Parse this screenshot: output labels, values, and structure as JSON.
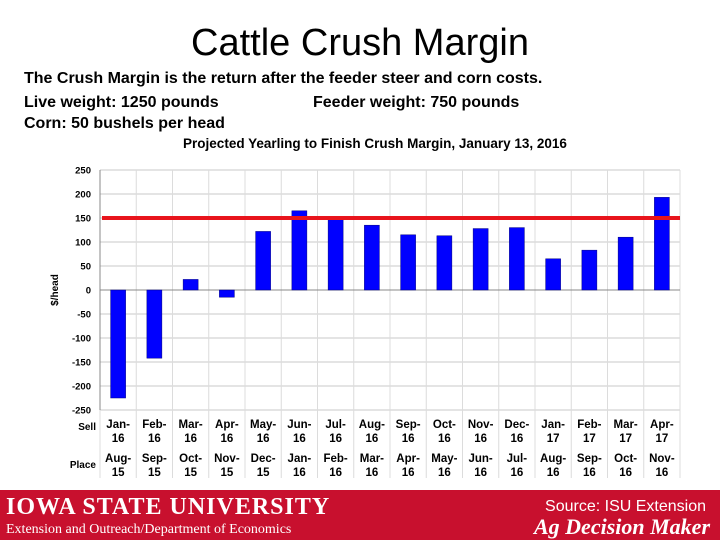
{
  "slide": {
    "title": "Cattle Crush Margin",
    "lines": [
      "The Crush Margin is the return after the feeder steer and corn costs.",
      "Live weight:  1250 pounds",
      "Feeder weight:  750 pounds",
      "Corn:  50 bushels per head"
    ]
  },
  "footer": {
    "university": "IOWA STATE UNIVERSITY",
    "department": "Extension and Outreach/Department of Economics",
    "source": "Source: ISU Extension",
    "brand": "Ag Decision Maker"
  },
  "colors": {
    "bar": "#0000ff",
    "reference_line": "#e8141c",
    "footer": "#c8102e"
  },
  "chart_data": {
    "type": "bar",
    "title": "Projected Yearling to Finish Crush Margin, January 13, 2016",
    "ylabel": "$/head",
    "ylim": [
      -250,
      250
    ],
    "yticks": [
      250,
      200,
      150,
      100,
      50,
      0,
      -50,
      -100,
      -150,
      -200,
      -250
    ],
    "grid": true,
    "row_labels": [
      "Sell",
      "Place"
    ],
    "categories": [
      "Jan-16",
      "Feb-16",
      "Mar-16",
      "Apr-16",
      "May-16",
      "Jun-16",
      "Jul-16",
      "Aug-16",
      "Sep-16",
      "Oct-16",
      "Nov-16",
      "Dec-16",
      "Jan-17",
      "Feb-17",
      "Mar-17",
      "Apr-17"
    ],
    "sell_labels": [
      [
        "Jan-",
        "16"
      ],
      [
        "Feb-",
        "16"
      ],
      [
        "Mar-",
        "16"
      ],
      [
        "Apr-",
        "16"
      ],
      [
        "May-",
        "16"
      ],
      [
        "Jun-",
        "16"
      ],
      [
        "Jul-",
        "16"
      ],
      [
        "Aug-",
        "16"
      ],
      [
        "Sep-",
        "16"
      ],
      [
        "Oct-",
        "16"
      ],
      [
        "Nov-",
        "16"
      ],
      [
        "Dec-",
        "16"
      ],
      [
        "Jan-",
        "17"
      ],
      [
        "Feb-",
        "17"
      ],
      [
        "Mar-",
        "17"
      ],
      [
        "Apr-",
        "17"
      ]
    ],
    "place_labels": [
      [
        "Aug-",
        "15"
      ],
      [
        "Sep-",
        "15"
      ],
      [
        "Oct-",
        "15"
      ],
      [
        "Nov-",
        "15"
      ],
      [
        "Dec-",
        "15"
      ],
      [
        "Jan-",
        "16"
      ],
      [
        "Feb-",
        "16"
      ],
      [
        "Mar-",
        "16"
      ],
      [
        "Apr-",
        "16"
      ],
      [
        "May-",
        "16"
      ],
      [
        "Jun-",
        "16"
      ],
      [
        "Jul-",
        "16"
      ],
      [
        "Aug-",
        "16"
      ],
      [
        "Sep-",
        "16"
      ],
      [
        "Oct-",
        "16"
      ],
      [
        "Nov-",
        "16"
      ]
    ],
    "values": [
      -225,
      -142,
      22,
      -15,
      122,
      165,
      147,
      135,
      115,
      113,
      128,
      130,
      65,
      83,
      110,
      193
    ],
    "reference_line": 150
  }
}
